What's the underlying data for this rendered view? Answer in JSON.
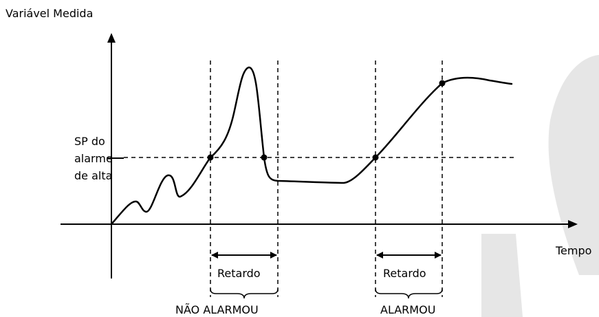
{
  "labels": {
    "y_axis": "Variável Medida",
    "x_axis": "Tempo",
    "sp_line1": "SP do",
    "sp_line2": "alarme",
    "sp_line3": "de alta",
    "delay_left": "Retardo",
    "delay_right": "Retardo",
    "result_left": "NÃO ALARMOU",
    "result_right": "ALARMOU"
  },
  "colors": {
    "ink": "#000000",
    "watermark": "#e6e6e6"
  }
}
